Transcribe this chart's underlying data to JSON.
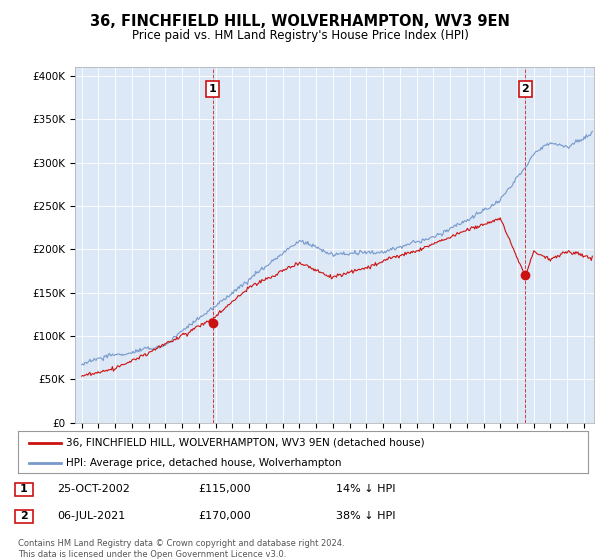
{
  "title": "36, FINCHFIELD HILL, WOLVERHAMPTON, WV3 9EN",
  "subtitle": "Price paid vs. HM Land Registry's House Price Index (HPI)",
  "ylabel_ticks": [
    "£0",
    "£50K",
    "£100K",
    "£150K",
    "£200K",
    "£250K",
    "£300K",
    "£350K",
    "£400K"
  ],
  "ytick_values": [
    0,
    50000,
    100000,
    150000,
    200000,
    250000,
    300000,
    350000,
    400000
  ],
  "ylim": [
    0,
    410000
  ],
  "xlim_start": 1994.6,
  "xlim_end": 2025.6,
  "hpi_color": "#7799cc",
  "price_color": "#cc1111",
  "point1_x": 2002.82,
  "point1_y": 115000,
  "point2_x": 2021.5,
  "point2_y": 170000,
  "point1_label": "1",
  "point2_label": "2",
  "legend_line1": "36, FINCHFIELD HILL, WOLVERHAMPTON, WV3 9EN (detached house)",
  "legend_line2": "HPI: Average price, detached house, Wolverhampton",
  "table_row1": [
    "1",
    "25-OCT-2002",
    "£115,000",
    "14% ↓ HPI"
  ],
  "table_row2": [
    "2",
    "06-JUL-2021",
    "£170,000",
    "38% ↓ HPI"
  ],
  "footer": "Contains HM Land Registry data © Crown copyright and database right 2024.\nThis data is licensed under the Open Government Licence v3.0.",
  "vline1_x": 2002.82,
  "vline2_x": 2021.5,
  "background_color": "#ffffff",
  "chart_bg_color": "#dce8f5"
}
